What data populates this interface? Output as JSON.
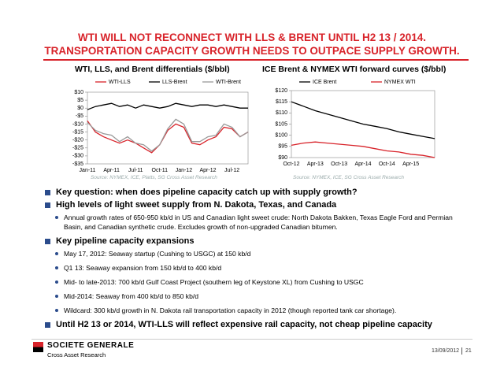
{
  "header": {
    "title": "WTI WILL NOT RECONNECT WITH LLS & BRENT UNTIL H2 13 / 2014.",
    "subtitle": "TRANSPORTATION CAPACITY GROWTH NEEDS TO OUTPACE SUPPLY GROWTH."
  },
  "chart_data": [
    {
      "type": "line",
      "title": "WTI, LLS, and Brent differentials  ($/bbl)",
      "source": "Source: NYMEX, ICE, Platts, SG Cross Asset Research",
      "categories": [
        "Jan-11",
        null,
        null,
        "Apr-11",
        null,
        null,
        "Jul-11",
        null,
        null,
        "Oct-11",
        null,
        null,
        "Jan-12",
        null,
        null,
        "Apr-12",
        null,
        null,
        "Jul-12",
        null,
        null
      ],
      "series": [
        {
          "name": "WTI-LLS",
          "color": "#d8232a",
          "values": [
            -8,
            -15,
            -18,
            -20,
            -22,
            -20,
            -22,
            -25,
            -28,
            -23,
            -14,
            -10,
            -12,
            -22,
            -23,
            -20,
            -18,
            -12,
            -13,
            -18,
            -15
          ]
        },
        {
          "name": "LLS-Brent",
          "color": "#000000",
          "values": [
            -1,
            1,
            2,
            3,
            1,
            2,
            0,
            2,
            1,
            0,
            1,
            3,
            2,
            1,
            2,
            2,
            1,
            2,
            1,
            0,
            0
          ]
        },
        {
          "name": "WTI-Brent",
          "color": "#999999",
          "values": [
            -9,
            -14,
            -16,
            -17,
            -21,
            -18,
            -22,
            -23,
            -27,
            -23,
            -13,
            -7,
            -10,
            -21,
            -21,
            -18,
            -17,
            -10,
            -12,
            -18,
            -15
          ]
        }
      ],
      "ylim": [
        -35,
        10
      ],
      "yticks": [
        {
          "value": 10,
          "label": "$10"
        },
        {
          "value": 5,
          "label": "$5"
        },
        {
          "value": 0,
          "label": "$0"
        },
        {
          "value": -5,
          "label": "-$5"
        },
        {
          "value": -10,
          "label": "-$10"
        },
        {
          "value": -15,
          "label": "-$15"
        },
        {
          "value": -20,
          "label": "-$20"
        },
        {
          "value": -25,
          "label": "-$25"
        },
        {
          "value": -30,
          "label": "-$30"
        },
        {
          "value": -35,
          "label": "-$35"
        }
      ],
      "legend": "top"
    },
    {
      "type": "line",
      "title": "ICE Brent & NYMEX WTI forward curves ($/bbl)",
      "source": "Source: NYMEX, ICE, SG Cross Asset Research",
      "categories": [
        "Oct-12",
        null,
        "Apr-13",
        null,
        "Oct-13",
        null,
        "Apr-14",
        null,
        "Oct-14",
        null,
        "Apr-15",
        null,
        null
      ],
      "series": [
        {
          "name": "ICE Brent",
          "color": "#000000",
          "values": [
            115,
            113,
            111,
            109.5,
            108,
            106.5,
            105,
            104,
            103,
            101.5,
            100.5,
            99.5,
            98.5
          ]
        },
        {
          "name": "NYMEX WTI",
          "color": "#d8232a",
          "values": [
            95.5,
            96.5,
            97,
            96.5,
            96,
            95.5,
            95,
            94,
            93,
            92.5,
            91.5,
            91,
            90
          ]
        }
      ],
      "ylim": [
        90,
        120
      ],
      "yticks": [
        {
          "value": 90,
          "label": "$90"
        },
        {
          "value": 95,
          "label": "$95"
        },
        {
          "value": 100,
          "label": "$100"
        },
        {
          "value": 105,
          "label": "$105"
        },
        {
          "value": 110,
          "label": "$110"
        },
        {
          "value": 115,
          "label": "$115"
        },
        {
          "value": 120,
          "label": "$120"
        }
      ],
      "legend": "top"
    }
  ],
  "bullets": [
    {
      "text": "Key question: when does pipeline capacity catch up with supply growth?",
      "items": []
    },
    {
      "text": "High levels of light sweet supply from N. Dakota, Texas, and Canada",
      "items": [
        "Annual growth rates of 650-950 kb/d in US and Canadian light sweet crude: North Dakota Bakken, Texas Eagle Ford and Permian Basin, and Canadian synthetic crude.  Excludes growth of non-upgraded Canadian bitumen."
      ]
    },
    {
      "text": "Key pipeline capacity expansions",
      "items": [
        "May 17, 2012:  Seaway startup (Cushing to USGC) at 150 kb/d",
        "Q1 13: Seaway expansion from 150 kb/d to 400 kb/d",
        "Mid- to late-2013: 700 kb/d Gulf Coast Project (southern leg of Keystone XL) from Cushing to USGC",
        "Mid-2014:  Seaway from 400 kb/d to 850 kb/d",
        "Wildcard: 300 kb/d growth in N. Dakota rail transportation capacity in 2012 (though reported tank car shortage)."
      ]
    },
    {
      "text": "Until H2 13 or 2014, WTI-LLS will reflect expensive rail capacity, not cheap pipeline capacity",
      "items": []
    }
  ],
  "footer": {
    "company": "SOCIETE GENERALE",
    "division": "Cross Asset Research",
    "date": "13/09/2012",
    "page": "21"
  }
}
